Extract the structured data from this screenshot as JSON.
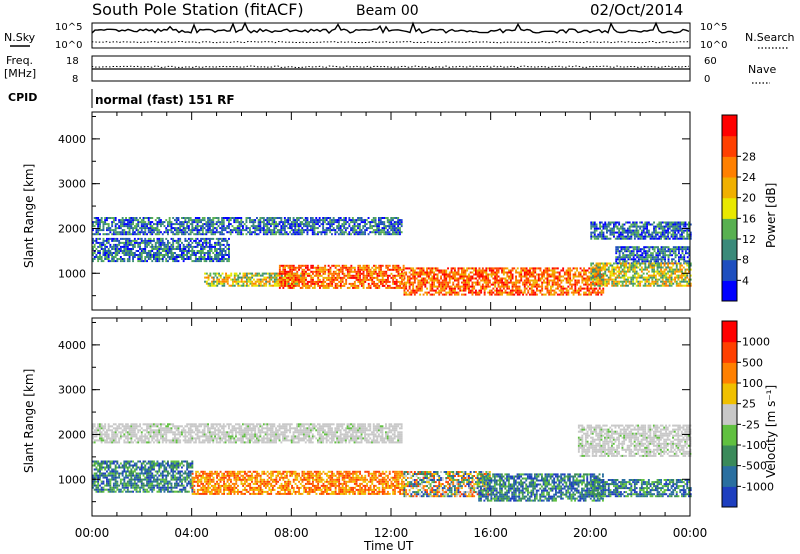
{
  "header": {
    "station": "South Pole Station (fitACF)",
    "beam": "Beam 00",
    "date": "02/Oct/2014"
  },
  "top_panels": {
    "nsky_label": "N.Sky",
    "nsky_ticks": [
      "10^5",
      "10^0"
    ],
    "nsearch_label": "N.Search",
    "nsearch_ticks": [
      "10^5",
      "10^0"
    ],
    "freq_label": "Freq.",
    "freq_unit": "[MHz]",
    "freq_ticks": [
      "18",
      "8"
    ],
    "nave_label": "Nave",
    "nave_ticks": [
      "60",
      "0"
    ],
    "cpid_label": "CPID",
    "cpid_text": "normal (fast) 151 RF"
  },
  "chart_data": [
    {
      "type": "heatmap",
      "name": "power",
      "ylabel": "Slant Range [km]",
      "ylim": [
        180,
        4600
      ],
      "yticks": [
        "1000",
        "2000",
        "3000",
        "4000"
      ],
      "xlim": [
        "00:00",
        "24:00"
      ],
      "colorbar": {
        "label": "Power [dB]",
        "ticks": [
          "4",
          "8",
          "12",
          "16",
          "20",
          "24",
          "28"
        ],
        "colors": [
          "#0000ff",
          "#1e4fbf",
          "#3a8a7a",
          "#58b050",
          "#e8e800",
          "#f0b000",
          "#ff8000",
          "#ff4000",
          "#ff0000"
        ]
      },
      "echo_bands": [
        {
          "t0": 0.0,
          "t1": 12.4,
          "range": [
            1850,
            2250
          ],
          "level": "low"
        },
        {
          "t0": 20.0,
          "t1": 24.0,
          "range": [
            1750,
            2150
          ],
          "level": "low"
        },
        {
          "t0": 0.0,
          "t1": 5.5,
          "range": [
            1250,
            1750
          ],
          "level": "low"
        },
        {
          "t0": 21.0,
          "t1": 24.0,
          "range": [
            1200,
            1600
          ],
          "level": "low"
        },
        {
          "t0": 4.5,
          "t1": 8.5,
          "range": [
            700,
            1000
          ],
          "level": "mid"
        },
        {
          "t0": 7.5,
          "t1": 12.5,
          "range": [
            650,
            1150
          ],
          "level": "high"
        },
        {
          "t0": 12.5,
          "t1": 20.5,
          "range": [
            500,
            1100
          ],
          "level": "high"
        },
        {
          "t0": 20.0,
          "t1": 24.0,
          "range": [
            700,
            1200
          ],
          "level": "mid"
        }
      ]
    },
    {
      "type": "heatmap",
      "name": "velocity",
      "ylabel": "Slant Range [km]",
      "ylim": [
        180,
        4600
      ],
      "yticks": [
        "1000",
        "2000",
        "3000",
        "4000"
      ],
      "xlabel": "Time UT",
      "xticks": [
        "00:00",
        "04:00",
        "08:00",
        "12:00",
        "16:00",
        "20:00",
        "00:00"
      ],
      "colorbar": {
        "label": "Velocity [m s⁻¹]",
        "ticks": [
          "1000",
          "500",
          "100",
          "25",
          "-25",
          "-100",
          "-500",
          "-1000"
        ],
        "colors": [
          "#1e3fbf",
          "#2a6fa0",
          "#3a8a5a",
          "#60c040",
          "#c8c8c8",
          "#f0c000",
          "#ff8000",
          "#ff4000",
          "#ff0000"
        ]
      },
      "echo_bands": [
        {
          "t0": 0.0,
          "t1": 12.4,
          "range": [
            1800,
            2250
          ],
          "level": "ground"
        },
        {
          "t0": 19.5,
          "t1": 24.0,
          "range": [
            1500,
            2200
          ],
          "level": "ground"
        },
        {
          "t0": 0.0,
          "t1": 4.0,
          "range": [
            700,
            1400
          ],
          "level": "toward"
        },
        {
          "t0": 4.0,
          "t1": 12.5,
          "range": [
            650,
            1150
          ],
          "level": "away"
        },
        {
          "t0": 12.5,
          "t1": 16.0,
          "range": [
            600,
            1150
          ],
          "level": "mixed"
        },
        {
          "t0": 15.5,
          "t1": 20.5,
          "range": [
            500,
            1100
          ],
          "level": "toward"
        },
        {
          "t0": 20.0,
          "t1": 24.0,
          "range": [
            600,
            1000
          ],
          "level": "toward"
        }
      ]
    }
  ]
}
